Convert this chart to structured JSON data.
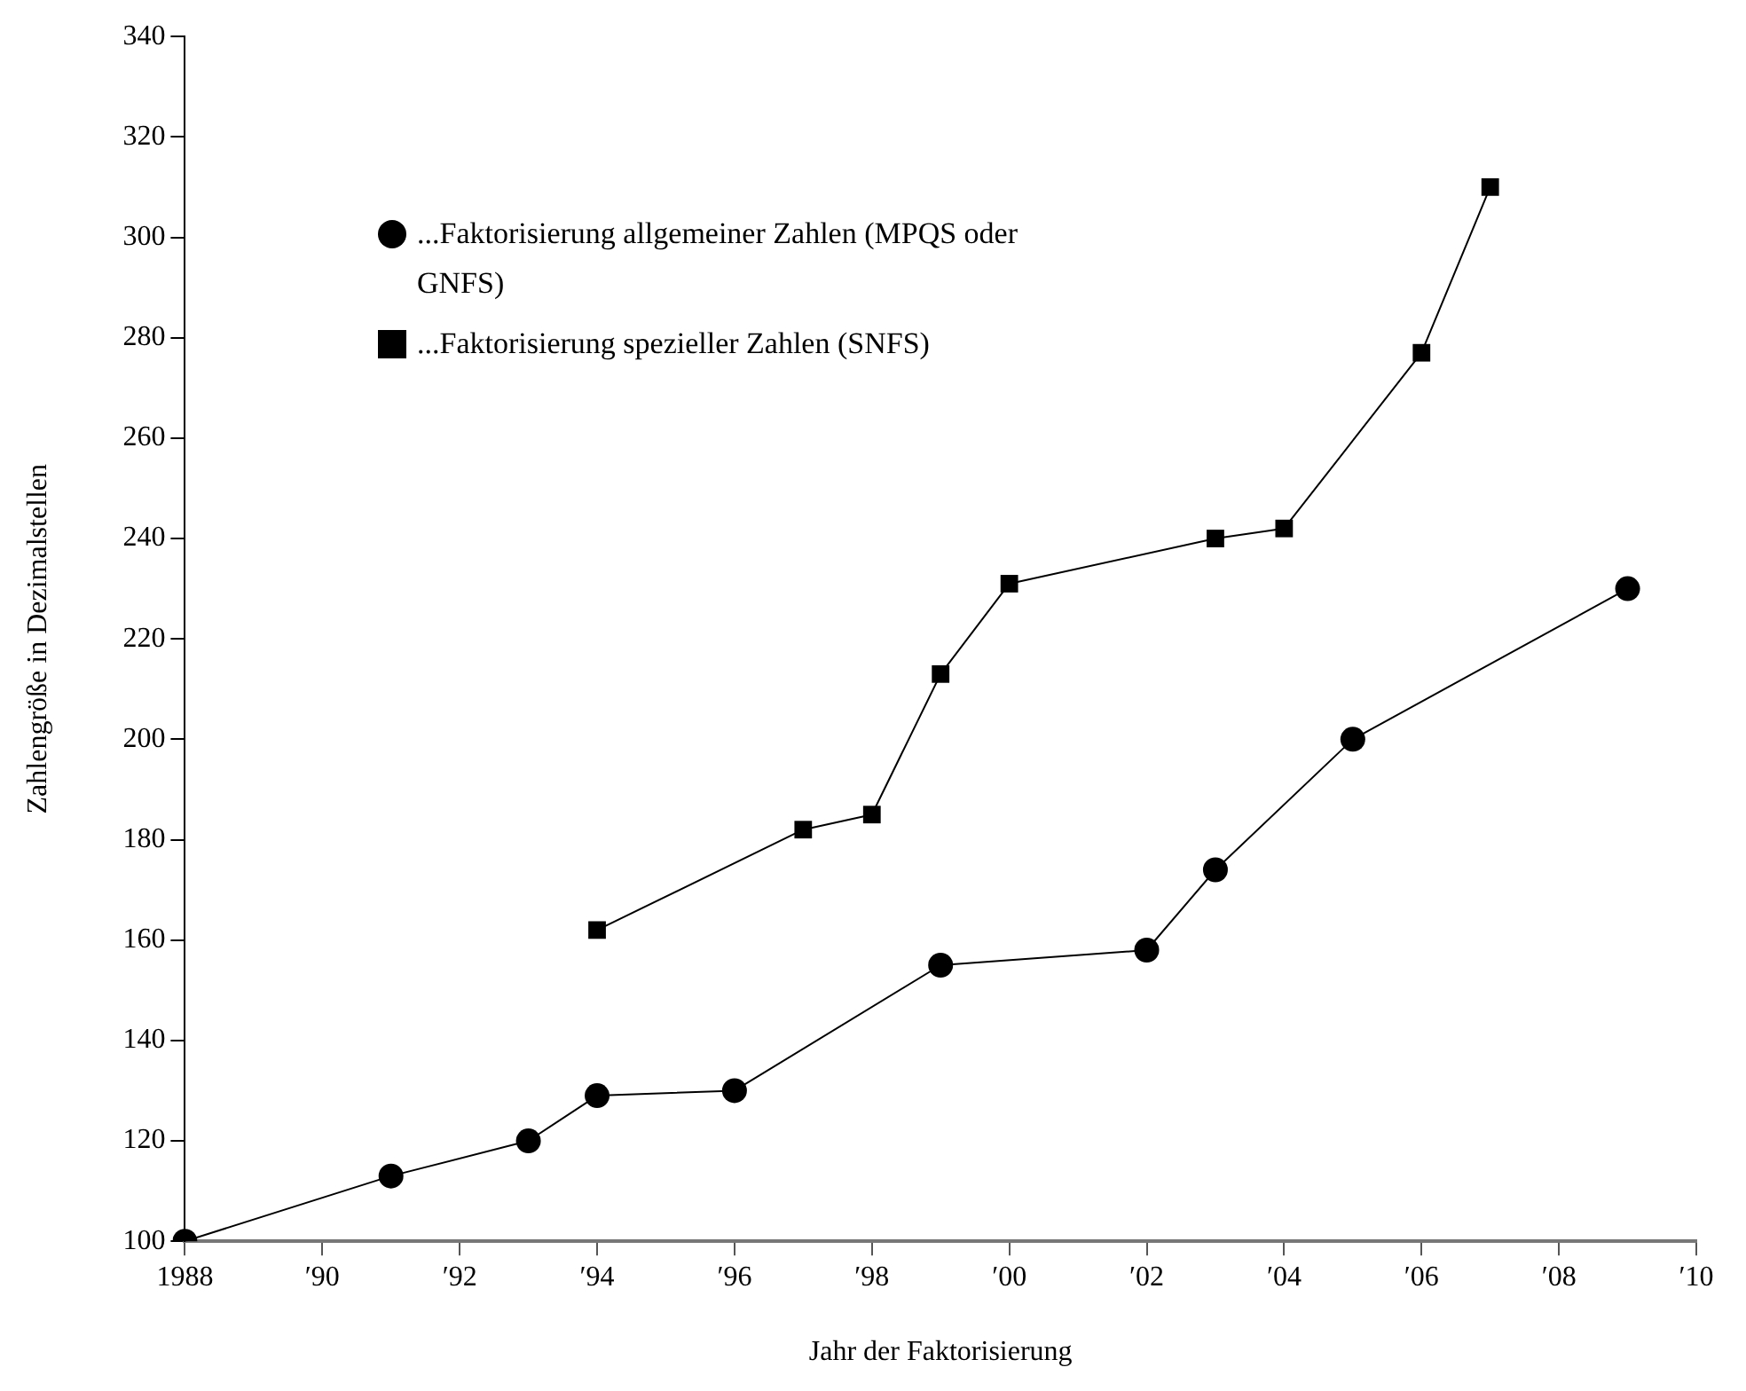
{
  "chart_data": {
    "type": "line",
    "xlabel": "Jahr der Faktorisierung",
    "ylabel": "Zahlengröße in Dezimalstellen",
    "categories": [
      "1988",
      null,
      "′90",
      null,
      "′92",
      null,
      "′94",
      null,
      "′96",
      null,
      "′98",
      null,
      "′00",
      null,
      "′02",
      null,
      "′04",
      null,
      "′06",
      null,
      "′08",
      null,
      "′10"
    ],
    "ylim": [
      100,
      340
    ],
    "yticks": [
      100,
      120,
      140,
      160,
      180,
      200,
      220,
      240,
      260,
      280,
      300,
      320,
      340
    ],
    "grid": false,
    "legend": "top left",
    "series": [
      {
        "name": "...Faktorisierung allgemeiner Zahlen (MPQS oder GNFS)",
        "color": "#000000",
        "marker": "circle",
        "values": [
          100,
          null,
          null,
          113,
          null,
          120,
          129,
          null,
          130,
          null,
          null,
          155,
          null,
          null,
          158,
          174,
          null,
          200,
          null,
          null,
          null,
          230,
          null
        ]
      },
      {
        "name": "...Faktorisierung spezieller Zahlen (SNFS)",
        "color": "#000000",
        "marker": "square",
        "values": [
          null,
          null,
          null,
          null,
          null,
          null,
          162,
          null,
          null,
          182,
          185,
          213,
          231,
          null,
          null,
          240,
          242,
          null,
          277,
          310,
          null,
          null,
          null
        ]
      }
    ]
  }
}
